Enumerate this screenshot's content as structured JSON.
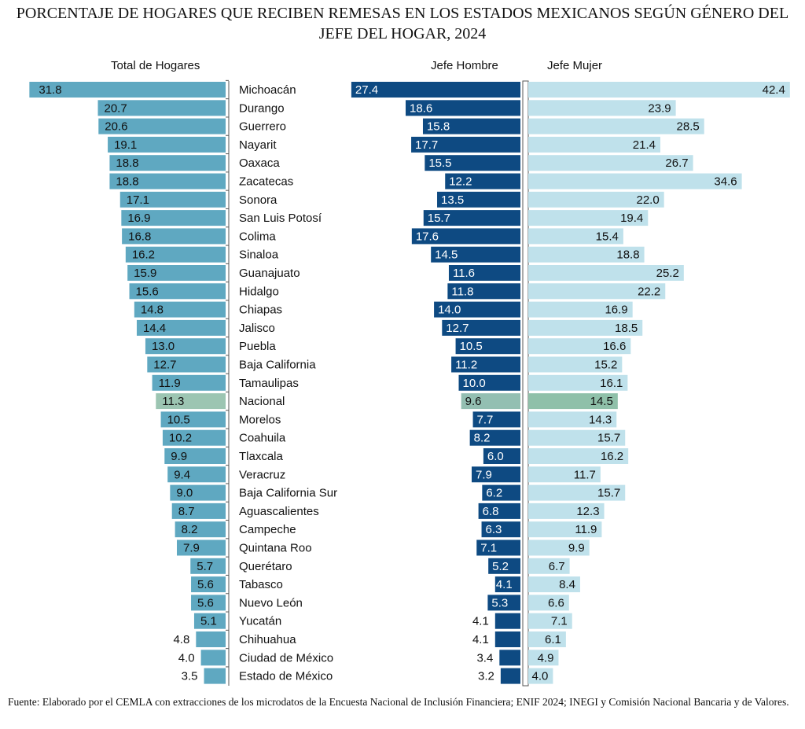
{
  "chart_data": {
    "type": "bar",
    "orientation": "horizontal",
    "title": "PORCENTAJE DE HOGARES QUE RECIBEN REMESAS EN LOS ESTADOS MEXICANOS SEGÚN GÉNERO DEL JEFE DEL HOGAR, 2024",
    "categories": [
      "Michoacán",
      "Durango",
      "Guerrero",
      "Nayarit",
      "Oaxaca",
      "Zacatecas",
      "Sonora",
      "San Luis Potosí",
      "Colima",
      "Sinaloa",
      "Guanajuato",
      "Hidalgo",
      "Chiapas",
      "Jalisco",
      "Puebla",
      "Baja California",
      "Tamaulipas",
      "Nacional",
      "Morelos",
      "Coahuila",
      "Tlaxcala",
      "Veracruz",
      "Baja California Sur",
      "Aguascalientes",
      "Campeche",
      "Quintana Roo",
      "Querétaro",
      "Tabasco",
      "Nuevo León",
      "Yucatán",
      "Chihuahua",
      "Ciudad de México",
      "Estado de México"
    ],
    "highlight_category": "Nacional",
    "series": [
      {
        "name": "Total de Hogares",
        "color": "#5fa8c1",
        "highlight_color": "#9cc5b2",
        "values": [
          31.8,
          20.7,
          20.6,
          19.1,
          18.8,
          18.8,
          17.1,
          16.9,
          16.8,
          16.2,
          15.9,
          15.6,
          14.8,
          14.4,
          13.0,
          12.7,
          11.9,
          11.3,
          10.5,
          10.2,
          9.9,
          9.4,
          9.0,
          8.7,
          8.2,
          7.9,
          5.7,
          5.6,
          5.6,
          5.1,
          4.8,
          4.0,
          3.5
        ]
      },
      {
        "name": "Jefe Hombre",
        "color": "#0e4a82",
        "highlight_color": "#93bfb2",
        "values": [
          27.4,
          18.6,
          15.8,
          17.7,
          15.5,
          12.2,
          13.5,
          15.7,
          17.6,
          14.5,
          11.6,
          11.8,
          14.0,
          12.7,
          10.5,
          11.2,
          10.0,
          9.6,
          7.7,
          8.2,
          6.0,
          7.9,
          6.2,
          6.8,
          6.3,
          7.1,
          5.2,
          4.1,
          5.3,
          4.1,
          4.1,
          3.4,
          3.2
        ]
      },
      {
        "name": "Jefe Mujer",
        "color": "#bfe1eb",
        "highlight_color": "#8fc0a9",
        "values": [
          42.4,
          23.9,
          28.5,
          21.4,
          26.7,
          34.6,
          22.0,
          19.4,
          15.4,
          18.8,
          25.2,
          22.2,
          16.9,
          18.5,
          16.6,
          15.2,
          16.1,
          14.5,
          14.3,
          15.7,
          16.2,
          11.7,
          15.7,
          12.3,
          11.9,
          9.9,
          6.7,
          8.4,
          6.6,
          7.1,
          6.1,
          4.9,
          4.0
        ]
      }
    ],
    "grid": false,
    "legend": "none"
  },
  "source": "Fuente: Elaborado por el CEMLA con extracciones de los microdatos de la Encuesta Nacional de Inclusión Financiera; ENIF 2024; INEGI y Comisión Nacional Bancaria y de Valores."
}
